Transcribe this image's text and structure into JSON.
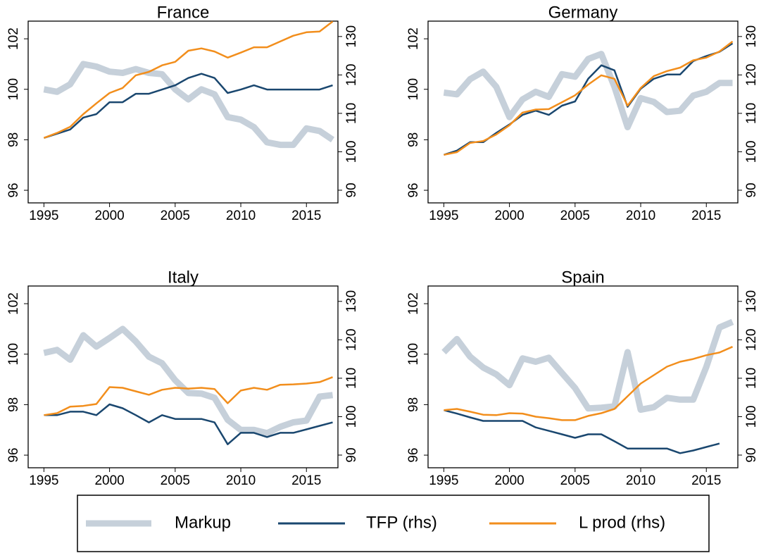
{
  "chart_data": [
    {
      "type": "line",
      "title": "France",
      "x": [
        1995,
        1996,
        1997,
        1998,
        1999,
        2000,
        2001,
        2002,
        2003,
        2004,
        2005,
        2006,
        2007,
        2008,
        2009,
        2010,
        2011,
        2012,
        2013,
        2014,
        2015,
        2016,
        2017
      ],
      "series": [
        {
          "name": "Markup",
          "color": "#c6d0da",
          "values": [
            100.0,
            99.9,
            100.2,
            101.0,
            100.9,
            100.7,
            100.65,
            100.8,
            100.65,
            100.6,
            100.0,
            99.6,
            100.0,
            99.8,
            98.9,
            98.8,
            98.5,
            97.9,
            97.8,
            97.8,
            98.45,
            98.35,
            98.0
          ]
        },
        {
          "name": "TFP (rhs)",
          "color": "#1a476f",
          "axis": "y2",
          "values": [
            103.6,
            104.7,
            105.8,
            108.9,
            109.8,
            112.9,
            112.9,
            115.1,
            115.1,
            116.2,
            117.3,
            119.2,
            120.3,
            119.2,
            115.3,
            116.2,
            117.3,
            116.2,
            116.2,
            116.2,
            116.2,
            116.2,
            117.3
          ]
        },
        {
          "name": "L prod (rhs)",
          "color": "#f28e1c",
          "axis": "y2",
          "values": [
            103.6,
            104.9,
            106.5,
            109.8,
            112.6,
            115.3,
            116.6,
            119.9,
            120.8,
            122.5,
            123.4,
            126.3,
            126.9,
            126.1,
            124.5,
            125.8,
            127.2,
            127.2,
            128.7,
            130.2,
            131.1,
            131.3,
            133.9
          ]
        }
      ],
      "xlim": [
        1993.8,
        2017.4
      ],
      "xticks": [
        1995,
        2000,
        2005,
        2010,
        2015
      ],
      "ylim": [
        95.5,
        102.7
      ],
      "yticks": [
        96,
        98,
        100,
        102
      ],
      "y2lim": [
        86.7,
        134
      ],
      "y2ticks": [
        90,
        100,
        110,
        120,
        130
      ]
    },
    {
      "type": "line",
      "title": "Germany",
      "x": [
        1995,
        1996,
        1997,
        1998,
        1999,
        2000,
        2001,
        2002,
        2003,
        2004,
        2005,
        2006,
        2007,
        2008,
        2009,
        2010,
        2011,
        2012,
        2013,
        2014,
        2015,
        2016,
        2017
      ],
      "series": [
        {
          "color": "#c6d0da",
          "values": [
            99.87,
            99.8,
            100.4,
            100.7,
            100.1,
            98.9,
            99.6,
            99.9,
            99.7,
            100.6,
            100.5,
            101.2,
            101.4,
            100.1,
            98.5,
            99.65,
            99.5,
            99.1,
            99.15,
            99.75,
            99.9,
            100.25,
            100.25
          ]
        },
        {
          "color": "#1a476f",
          "axis": "y2",
          "values": [
            99.2,
            100.3,
            102.5,
            102.5,
            104.9,
            107.1,
            109.6,
            110.7,
            109.6,
            112.0,
            113.1,
            119.0,
            122.5,
            121.2,
            111.7,
            116.4,
            119.0,
            120.1,
            120.1,
            123.6,
            124.9,
            126.0,
            128.2
          ]
        },
        {
          "color": "#f28e1c",
          "axis": "y2",
          "values": [
            99.2,
            99.9,
            102.3,
            102.8,
            104.5,
            106.9,
            110.2,
            111.0,
            111.1,
            112.9,
            114.7,
            117.5,
            119.9,
            119.0,
            112.0,
            116.6,
            119.7,
            121.0,
            121.9,
            123.8,
            124.5,
            126.1,
            128.7
          ]
        }
      ],
      "xlim": [
        1993.8,
        2017.4
      ],
      "xticks": [
        1995,
        2000,
        2005,
        2010,
        2015
      ],
      "ylim": [
        95.5,
        102.7
      ],
      "yticks": [
        96,
        98,
        100,
        102
      ],
      "y2lim": [
        86.7,
        134
      ],
      "y2ticks": [
        90,
        100,
        110,
        120,
        130
      ]
    },
    {
      "type": "line",
      "title": "Italy",
      "x": [
        1995,
        1996,
        1997,
        1998,
        1999,
        2000,
        2001,
        2002,
        2003,
        2004,
        2005,
        2006,
        2007,
        2008,
        2009,
        2010,
        2011,
        2012,
        2013,
        2014,
        2015,
        2016,
        2017
      ],
      "series": [
        {
          "color": "#c6d0da",
          "values": [
            100.05,
            100.17,
            99.78,
            100.75,
            100.3,
            100.64,
            101.0,
            100.5,
            99.9,
            99.64,
            98.97,
            98.46,
            98.44,
            98.27,
            97.4,
            97.0,
            97.0,
            96.87,
            97.12,
            97.3,
            97.37,
            98.32,
            98.38
          ]
        },
        {
          "color": "#1a476f",
          "axis": "y2",
          "values": [
            100.4,
            100.4,
            101.3,
            101.3,
            100.4,
            103.2,
            102.2,
            100.4,
            98.5,
            100.4,
            99.4,
            99.4,
            99.4,
            98.5,
            92.8,
            95.8,
            95.8,
            94.7,
            95.8,
            95.8,
            96.7,
            97.6,
            98.5
          ]
        },
        {
          "color": "#f28e1c",
          "axis": "y2",
          "values": [
            100.4,
            100.9,
            102.6,
            102.8,
            103.3,
            107.7,
            107.5,
            106.6,
            105.7,
            107.0,
            107.5,
            107.3,
            107.5,
            107.2,
            103.5,
            106.8,
            107.5,
            107.0,
            108.3,
            108.4,
            108.6,
            109.0,
            110.3
          ]
        }
      ],
      "xlim": [
        1993.8,
        2017.4
      ],
      "xticks": [
        1995,
        2000,
        2005,
        2010,
        2015
      ],
      "ylim": [
        95.5,
        102.7
      ],
      "yticks": [
        96,
        98,
        100,
        102
      ],
      "y2lim": [
        86.7,
        134
      ],
      "y2ticks": [
        90,
        100,
        110,
        120,
        130
      ]
    },
    {
      "type": "line",
      "title": "Spain",
      "x": [
        1995,
        1996,
        1997,
        1998,
        1999,
        2000,
        2001,
        2002,
        2003,
        2004,
        2005,
        2006,
        2007,
        2008,
        2009,
        2010,
        2011,
        2012,
        2013,
        2014,
        2015,
        2016,
        2017
      ],
      "series": [
        {
          "color": "#c6d0da",
          "values": [
            100.08,
            100.6,
            99.9,
            99.47,
            99.2,
            98.77,
            99.83,
            99.7,
            99.86,
            99.25,
            98.66,
            97.85,
            97.88,
            97.93,
            100.08,
            97.8,
            97.9,
            98.27,
            98.2,
            98.2,
            99.5,
            101.06,
            101.28
          ]
        },
        {
          "color": "#1a476f",
          "axis": "y2",
          "values": [
            101.7,
            100.8,
            99.8,
            98.9,
            98.9,
            98.9,
            98.9,
            97.2,
            96.3,
            95.4,
            94.5,
            95.4,
            95.4,
            93.6,
            91.7,
            91.7,
            91.7,
            91.7,
            90.5,
            91.2,
            92.1,
            93.0,
            null
          ]
        },
        {
          "color": "#f28e1c",
          "axis": "y2",
          "values": [
            101.7,
            102.0,
            101.3,
            100.5,
            100.4,
            100.9,
            100.8,
            100.0,
            99.6,
            99.1,
            99.1,
            100.2,
            100.9,
            102.0,
            105.3,
            108.6,
            110.8,
            113.0,
            114.3,
            115.0,
            116.0,
            116.7,
            118.2
          ]
        }
      ],
      "xlim": [
        1993.8,
        2017.4
      ],
      "xticks": [
        1995,
        2000,
        2005,
        2010,
        2015
      ],
      "ylim": [
        95.5,
        102.7
      ],
      "yticks": [
        96,
        98,
        100,
        102
      ],
      "y2lim": [
        86.7,
        134
      ],
      "y2ticks": [
        90,
        100,
        110,
        120,
        130
      ]
    }
  ]
}
